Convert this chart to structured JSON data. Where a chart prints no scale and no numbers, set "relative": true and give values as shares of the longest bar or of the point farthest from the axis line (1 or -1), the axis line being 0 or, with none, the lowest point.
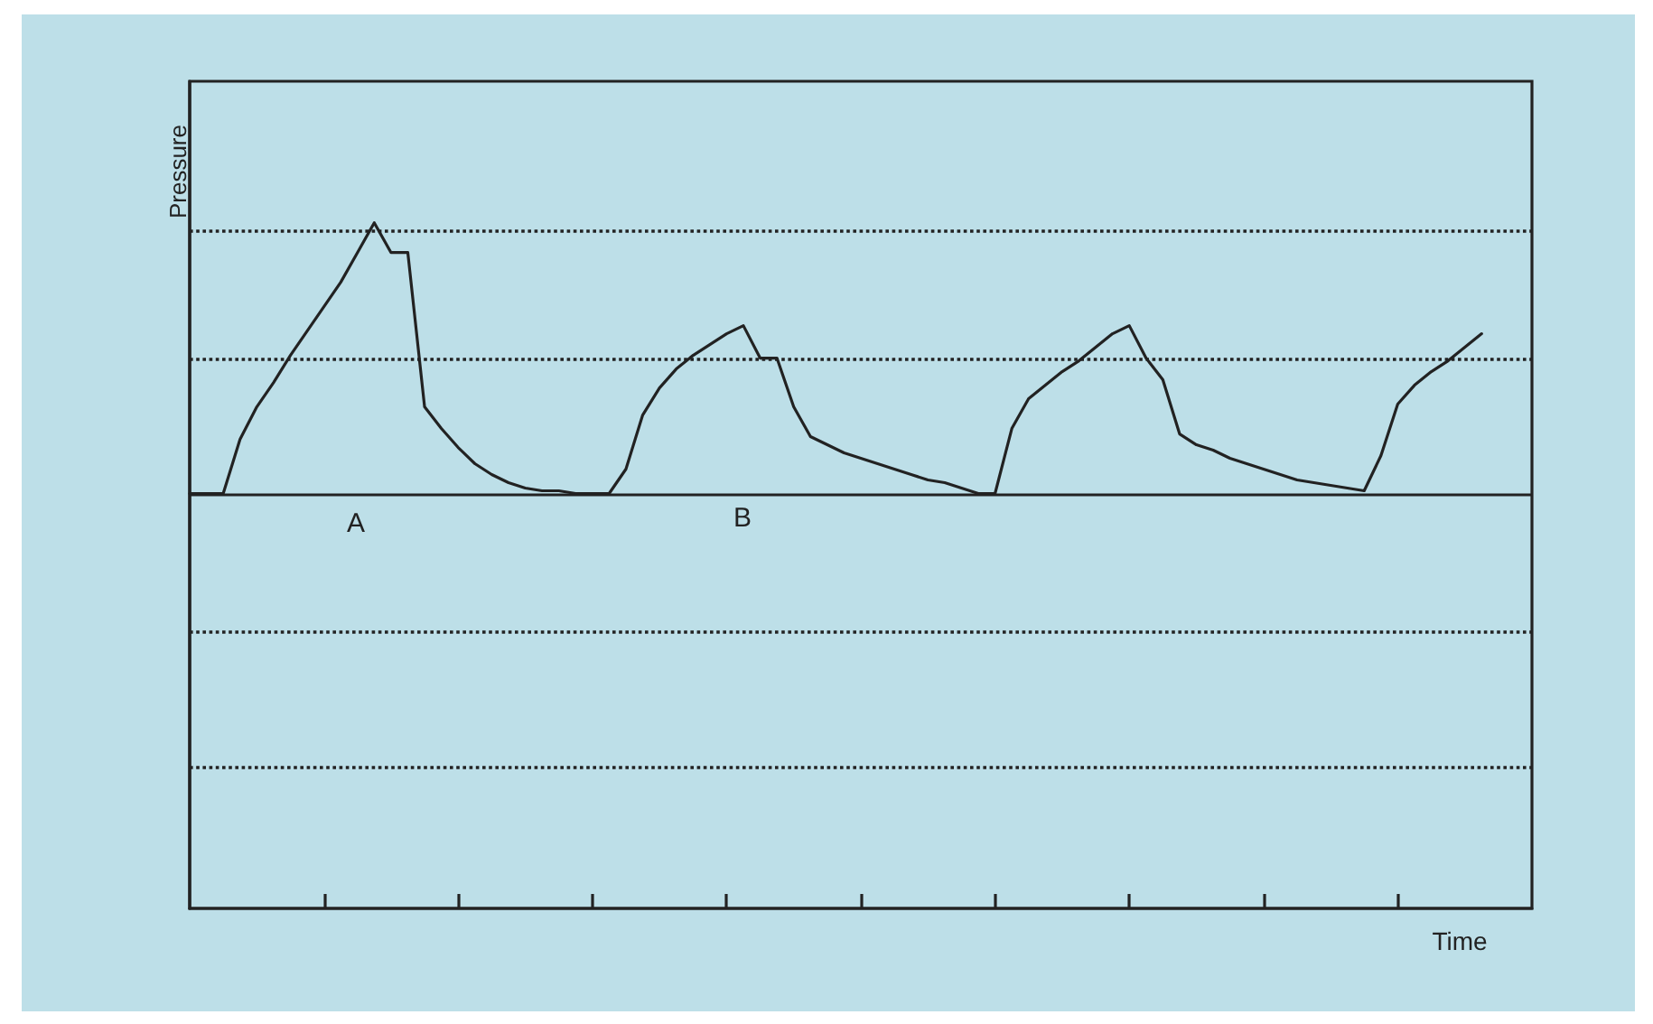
{
  "chart_data": {
    "type": "line",
    "relative": true,
    "ylabel": "Pressure",
    "categories": [
      null,
      null,
      null,
      null,
      null,
      null,
      null,
      null,
      null,
      null,
      null,
      null,
      null,
      null,
      null,
      null,
      null,
      null,
      null,
      null,
      null,
      null,
      null,
      null,
      null,
      null,
      null,
      null,
      null,
      null,
      null,
      null,
      null,
      null,
      null,
      null,
      null,
      null,
      null,
      null,
      null,
      null,
      null,
      null,
      null,
      null,
      null,
      null,
      null,
      null,
      null,
      null,
      null,
      null,
      null,
      null,
      null,
      null,
      null,
      null,
      null,
      null,
      null,
      null,
      null,
      null,
      null,
      null,
      null,
      null,
      null,
      null,
      null,
      null,
      null,
      null,
      null,
      null,
      null,
      null,
      null
    ],
    "values": [
      0,
      0,
      0,
      0.2,
      0.32,
      0.41,
      0.51,
      0.6,
      0.69,
      0.78,
      0.89,
      1.0,
      0.89,
      0.89,
      0.32,
      0.24,
      0.17,
      0.11,
      0.07,
      0.04,
      0.02,
      0.01,
      0.01,
      0,
      0,
      0,
      0.09,
      0.29,
      0.39,
      0.46,
      0.51,
      0.55,
      0.59,
      0.62,
      0.5,
      0.5,
      0.32,
      0.21,
      0.18,
      0.15,
      0.13,
      0.11,
      0.09,
      0.07,
      0.05,
      0.04,
      0.02,
      0,
      0,
      0.24,
      0.35,
      0.4,
      0.45,
      0.49,
      0.54,
      0.59,
      0.62,
      0.5,
      0.42,
      0.22,
      0.18,
      0.16,
      0.13,
      0.11,
      0.09,
      0.07,
      0.05,
      0.04,
      0.03,
      0.02,
      0.01,
      0.14,
      0.33,
      0.4,
      0.45,
      0.49,
      0.54,
      0.59,
      null,
      null,
      null
    ],
    "color": "#222222",
    "marker": "none",
    "line_style": "solid",
    "ref_lines": [
      {
        "axis": "y",
        "value": 0,
        "line_style": "solid",
        "color": "#222222"
      },
      {
        "axis": "y",
        "value": 0.97,
        "line_style": "dotted",
        "color": "#222222"
      },
      {
        "axis": "y",
        "value": 0.5,
        "line_style": "dotted",
        "color": "#222222"
      },
      {
        "axis": "y",
        "value": -0.51,
        "line_style": "dotted",
        "color": "#222222"
      },
      {
        "axis": "y",
        "value": -1.01,
        "line_style": "dotted",
        "color": "#222222"
      }
    ],
    "annotations": [
      "A",
      "B",
      "Time"
    ]
  }
}
